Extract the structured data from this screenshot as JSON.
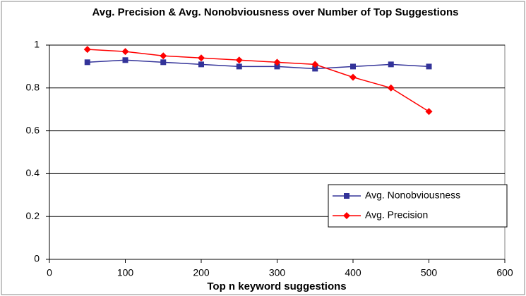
{
  "chart_data": {
    "type": "line",
    "title": "Avg. Precision & Avg. Nonobviousness over Number of Top Suggestions",
    "x_label": "Top n keyword suggestions",
    "x": [
      50,
      100,
      150,
      200,
      250,
      300,
      350,
      400,
      450,
      500
    ],
    "series": [
      {
        "name": "Avg. Nonobviousness",
        "color": "#333399",
        "marker": "square",
        "values": [
          0.92,
          0.93,
          0.92,
          0.91,
          0.9,
          0.9,
          0.89,
          0.9,
          0.91,
          0.9
        ]
      },
      {
        "name": "Avg. Precision",
        "color": "#ff0000",
        "marker": "diamond",
        "values": [
          0.98,
          0.97,
          0.95,
          0.94,
          0.93,
          0.92,
          0.91,
          0.85,
          0.8,
          0.69
        ]
      }
    ],
    "xlim": [
      0,
      600
    ],
    "xticks": [
      0,
      100,
      200,
      300,
      400,
      500,
      600
    ],
    "ylim": [
      0,
      1
    ],
    "yticks": [
      0,
      0.2,
      0.4,
      0.6,
      0.8,
      1
    ],
    "grid": true,
    "legend": "lower right"
  }
}
